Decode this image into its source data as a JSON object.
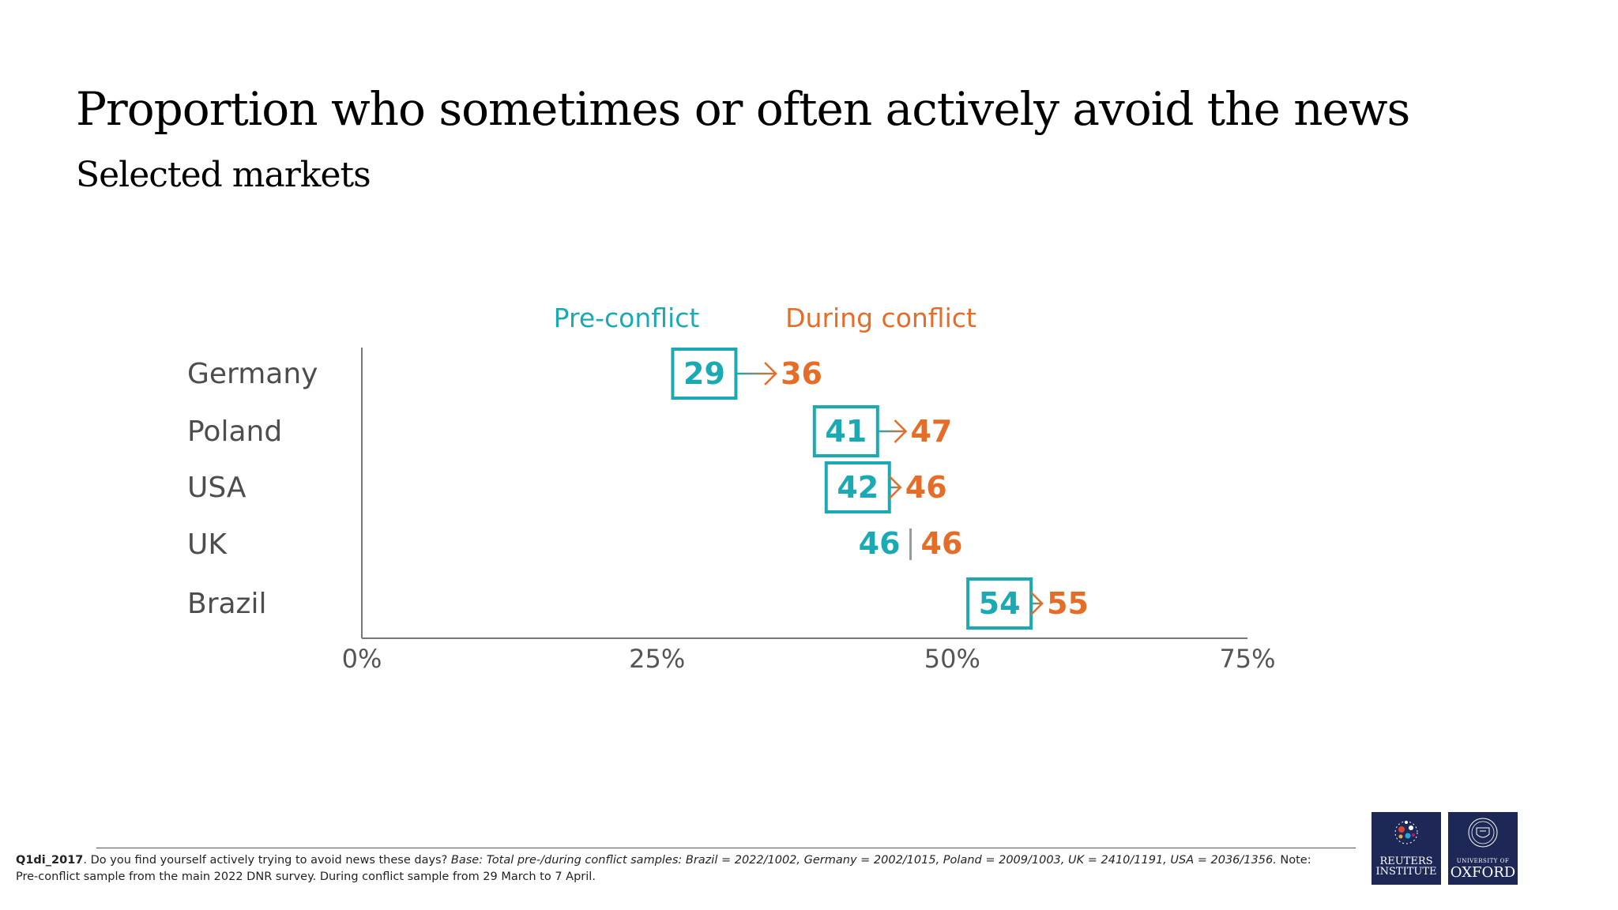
{
  "slide": {
    "title": "Proportion who sometimes or often actively avoid the news",
    "subtitle": "Selected markets"
  },
  "chart_data": {
    "type": "dot-arrow",
    "x_ticks": [
      "0%",
      "25%",
      "50%",
      "75%"
    ],
    "xlim": [
      0,
      75
    ],
    "legend": {
      "pre": "Pre-conflict",
      "during": "During conflict"
    },
    "categories": [
      "Germany",
      "Poland",
      "USA",
      "UK",
      "Brazil"
    ],
    "series": [
      {
        "name": "Pre-conflict",
        "values": [
          29,
          41,
          42,
          46,
          54
        ]
      },
      {
        "name": "During conflict",
        "values": [
          36,
          47,
          46,
          46,
          55
        ]
      }
    ],
    "colors": {
      "pre": "#1ba9b3",
      "during": "#e56d27",
      "axis": "#777777",
      "category_text": "#4d4d4d"
    }
  },
  "footnote": {
    "code": "Q1di_2017",
    "question": ". Do you find yourself actively trying to avoid news these days?  ",
    "base": "Base: Total pre-/during conflict samples: Brazil = 2022/1002, Germany = 2002/1015, Poland = 2009/1003, UK = 2410/1191, USA = 2036/1356.",
    "note": " Note: Pre-conflict sample from the main 2022 DNR survey. During conflict sample from 29 March to 7 April."
  },
  "logos": {
    "reuters_line1": "REUTERS",
    "reuters_line2": "INSTITUTE",
    "oxford_small": "UNIVERSITY OF",
    "oxford_big": "OXFORD"
  }
}
